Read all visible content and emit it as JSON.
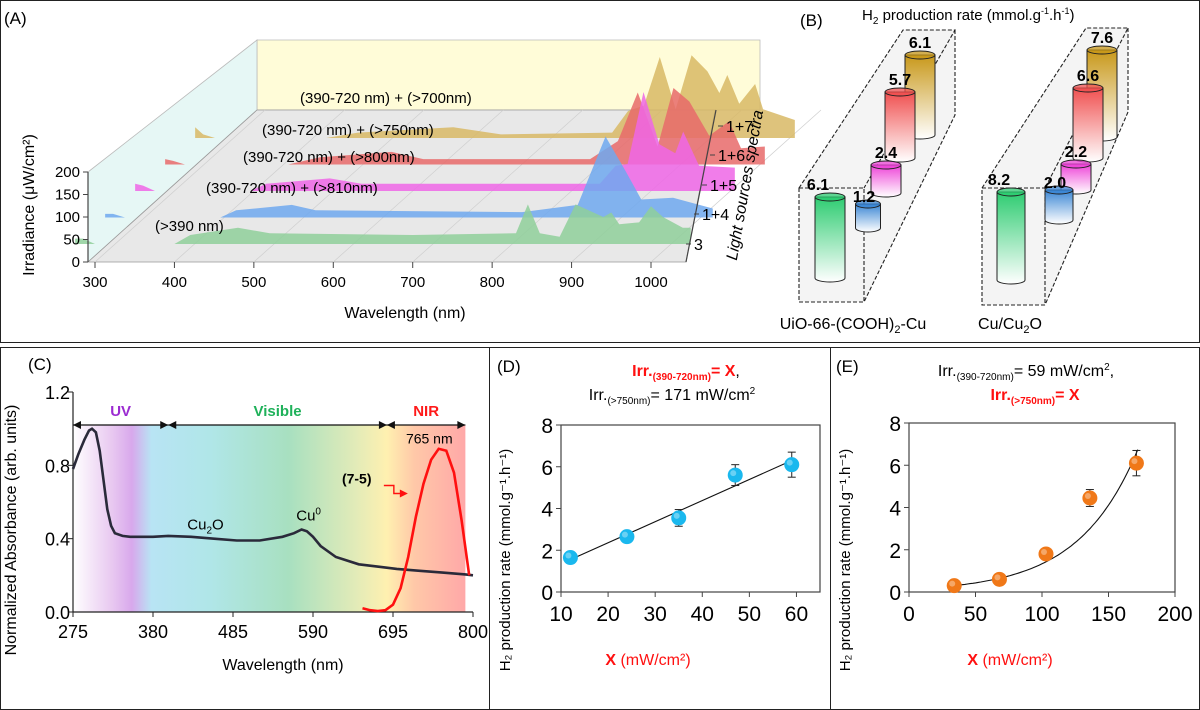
{
  "panelA": {
    "label": "(A)",
    "ylabel": "Irradiance (μW/cm²)",
    "xlabel": "Wavelength (nm)",
    "zlabel": "Light sources spectra",
    "yticks": [
      "0",
      "50",
      "100",
      "150",
      "200"
    ],
    "xticks": [
      "300",
      "400",
      "500",
      "600",
      "700",
      "800",
      "900",
      "1000"
    ],
    "ztick_labels": [
      "3",
      "1+4",
      "1+5",
      "1+6",
      "1+7"
    ],
    "series": [
      {
        "name": "(>390 nm)",
        "id": "3",
        "color": "#8fcf9a"
      },
      {
        "name": "(390-720 nm)  + (>810nm)",
        "id": "1+4",
        "color": "#6ea8ee"
      },
      {
        "name": "(390-720 nm) + (>800nm)",
        "id": "1+5",
        "color": "#ee66e6"
      },
      {
        "name": "(390-720 nm)  + (>750nm)",
        "id": "1+6",
        "color": "#e86a6a"
      },
      {
        "name": "(390-720 nm) + (>700nm)",
        "id": "1+7",
        "color": "#d8b865"
      }
    ]
  },
  "panelB": {
    "label": "(B)",
    "title": "H₂ production rate (mmol.g⁻¹.h⁻¹)",
    "groups": [
      {
        "name": "UiO-66-(COOH)₂-Cu",
        "values": [
          {
            "source": "3",
            "value": "6.1",
            "color": "#2ecc71"
          },
          {
            "source": "1+4",
            "value": "1.2",
            "color": "#3a86d4"
          },
          {
            "source": "1+5",
            "value": "2.4",
            "color": "#ee44d8"
          },
          {
            "source": "1+6",
            "value": "5.7",
            "color": "#f05050"
          },
          {
            "source": "1+7",
            "value": "6.1",
            "color": "#c8981a"
          }
        ]
      },
      {
        "name": "Cu/Cu₂O",
        "values": [
          {
            "source": "3",
            "value": "8.2",
            "color": "#2ecc71"
          },
          {
            "source": "1+4",
            "value": "2.0",
            "color": "#3a86d4"
          },
          {
            "source": "1+5",
            "value": "2.2",
            "color": "#ee44d8"
          },
          {
            "source": "1+6",
            "value": "6.6",
            "color": "#f05050"
          },
          {
            "source": "1+7",
            "value": "7.6",
            "color": "#c8981a"
          }
        ]
      }
    ]
  },
  "chart_data": [
    {
      "type": "line",
      "panel": "C",
      "label": "(C)",
      "xlabel": "Wavelength (nm)",
      "ylabel": "Normalized Absorbance (arb. units)",
      "xlim": [
        275,
        800
      ],
      "ylim": [
        0,
        1.2
      ],
      "xticks": [
        "275",
        "380",
        "485",
        "590",
        "695",
        "800"
      ],
      "yticks": [
        "0.0",
        "0.4",
        "0.8",
        "1.2"
      ],
      "regions": [
        {
          "name": "UV",
          "color": "#9b2bd1"
        },
        {
          "name": "Visible",
          "color": "#1fb15a"
        },
        {
          "name": "NIR",
          "color": "#ff1a1a"
        }
      ],
      "annotations": {
        "cu2o": "Cu₂O",
        "cu0": "Cu⁰",
        "peak": "765 nm",
        "source": "(7-5)"
      },
      "series": [
        {
          "name": "absorbance",
          "x": [
            275,
            282,
            290,
            296,
            300,
            305,
            310,
            315,
            320,
            325,
            330,
            340,
            350,
            360,
            380,
            400,
            430,
            460,
            490,
            520,
            550,
            565,
            575,
            582,
            590,
            600,
            620,
            650,
            680,
            700,
            730,
            760,
            790,
            800
          ],
          "y": [
            0.78,
            0.86,
            0.94,
            0.99,
            1.0,
            0.98,
            0.88,
            0.72,
            0.56,
            0.47,
            0.43,
            0.415,
            0.41,
            0.41,
            0.41,
            0.415,
            0.41,
            0.4,
            0.39,
            0.39,
            0.41,
            0.43,
            0.45,
            0.44,
            0.41,
            0.36,
            0.3,
            0.26,
            0.245,
            0.235,
            0.225,
            0.215,
            0.205,
            0.2
          ]
        },
        {
          "name": "(7-5) source spectrum",
          "x": [
            655,
            665,
            675,
            685,
            695,
            705,
            715,
            725,
            735,
            745,
            755,
            765,
            775,
            785,
            795
          ],
          "y": [
            0.02,
            0.01,
            0.005,
            0.01,
            0.04,
            0.13,
            0.3,
            0.52,
            0.7,
            0.83,
            0.89,
            0.88,
            0.76,
            0.5,
            0.2
          ]
        }
      ]
    },
    {
      "type": "scatter",
      "panel": "D",
      "label": "(D)",
      "title_line1": "Irr.₍₃₉₀₋₇₂₀ₙₘ₎= X,",
      "title_line1_parts": {
        "prefix": "Irr.",
        "sub": "(390-720nm)",
        "suffix": "= X",
        ",": ","
      },
      "title_line2_parts": {
        "prefix": "Irr.",
        "sub": "(>750nm)",
        "suffix": "= 171 mW/cm",
        "sup": "2"
      },
      "xlabel_bold": "X",
      "xlabel": " (mW/cm²)",
      "ylabel": "H₂ production rate (mmol.g⁻¹.h⁻¹)",
      "xlim": [
        10,
        65
      ],
      "ylim": [
        0,
        8
      ],
      "xticks": [
        "10",
        "20",
        "30",
        "40",
        "50",
        "60"
      ],
      "yticks": [
        "0",
        "2",
        "4",
        "6",
        "8"
      ],
      "points": [
        {
          "x": 12,
          "y": 1.65,
          "err": 0.15
        },
        {
          "x": 24,
          "y": 2.65,
          "err": 0.15
        },
        {
          "x": 35,
          "y": 3.55,
          "err": 0.4
        },
        {
          "x": 47,
          "y": 5.6,
          "err": 0.5
        },
        {
          "x": 59,
          "y": 6.1,
          "err": 0.6
        }
      ],
      "fit": {
        "type": "linear",
        "x": [
          12,
          59
        ],
        "y": [
          1.55,
          6.3
        ]
      },
      "marker_color": "#1ab8ee"
    },
    {
      "type": "scatter",
      "panel": "E",
      "label": "(E)",
      "title_line1_parts": {
        "prefix": "Irr.",
        "sub": "(390-720nm)",
        "suffix": "= 59 mW/cm",
        "sup": "2",
        ",": ","
      },
      "title_line2_parts": {
        "prefix": "Irr.",
        "sub": "(>750nm)",
        "suffix": "= X"
      },
      "xlabel_bold": "X",
      "xlabel": " (mW/cm²)",
      "ylabel": "H₂ production rate (mmol.g⁻¹.h⁻¹)",
      "xlim": [
        0,
        200
      ],
      "ylim": [
        0,
        8
      ],
      "xticks": [
        "0",
        "50",
        "100",
        "150",
        "200"
      ],
      "yticks": [
        "0",
        "2",
        "4",
        "6",
        "8"
      ],
      "points": [
        {
          "x": 34,
          "y": 0.3,
          "err": 0.05
        },
        {
          "x": 68,
          "y": 0.6,
          "err": 0.05
        },
        {
          "x": 103,
          "y": 1.8,
          "err": 0.1
        },
        {
          "x": 136,
          "y": 4.45,
          "err": 0.4
        },
        {
          "x": 171,
          "y": 6.1,
          "err": 0.6
        }
      ],
      "fit": {
        "type": "exponential",
        "a": 0.1406,
        "b": 0.0225
      },
      "marker_color": "#f07818"
    }
  ]
}
